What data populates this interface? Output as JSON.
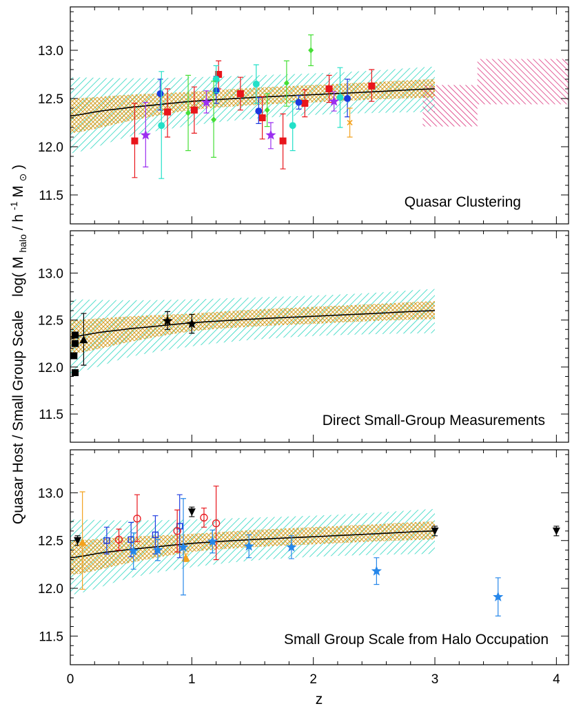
{
  "figure": {
    "ylabel_main": "Quasar Host / Small Group Scale",
    "ylabel_log": "log( M",
    "ylabel_halo_sub": "halo",
    "ylabel_mid": " / h",
    "ylabel_sup": "-1",
    "ylabel_msun": " M",
    "ylabel_sun_sub": "⊙",
    "ylabel_close": ")",
    "xlabel": "z"
  },
  "colors": {
    "axis": "#000000",
    "model_line": "#000000",
    "cyan_band": "#2ad6c0",
    "orange_band": "#d9a230",
    "magenta_band": "#d6176b",
    "red": "#e8151b",
    "blue": "#1b39e0",
    "cyan": "#22e0c8",
    "green": "#46df36",
    "purple": "#9b2ff0",
    "orange": "#f3a21f",
    "brown": "#b36a3b",
    "skyblue": "#2687ea",
    "black": "#000000"
  },
  "chart_data": [
    {
      "type": "scatter",
      "panel_label": "Quasar Clustering",
      "xlim": [
        0,
        4.1
      ],
      "ylim": [
        11.2,
        13.45
      ],
      "yticks": [
        "11.5",
        "12.0",
        "12.5",
        "13.0"
      ],
      "xticks": [],
      "model_curve": {
        "x": [
          0,
          0.25,
          0.5,
          1.0,
          1.5,
          2.0,
          2.5,
          3.0
        ],
        "y": [
          12.32,
          12.37,
          12.41,
          12.47,
          12.51,
          12.54,
          12.57,
          12.6
        ]
      },
      "cyan_band": {
        "x": [
          0,
          0.5,
          1.0,
          1.5,
          2.0,
          2.5,
          3.0
        ],
        "upper": [
          12.72,
          12.71,
          12.72,
          12.74,
          12.76,
          12.79,
          12.83
        ],
        "lower": [
          11.93,
          12.11,
          12.22,
          12.29,
          12.33,
          12.35,
          12.36
        ]
      },
      "orange_band": {
        "x": [
          0,
          0.5,
          1.0,
          1.5,
          2.0,
          2.5,
          3.0
        ],
        "upper": [
          12.5,
          12.54,
          12.57,
          12.61,
          12.64,
          12.67,
          12.7
        ],
        "lower": [
          12.14,
          12.27,
          12.38,
          12.43,
          12.46,
          12.49,
          12.51
        ]
      },
      "magenta_boxes": [
        {
          "x0": 2.9,
          "x1": 3.35,
          "y0": 12.21,
          "y1": 12.64
        },
        {
          "x0": 3.35,
          "x1": 4.1,
          "y0": 12.44,
          "y1": 12.91
        }
      ],
      "series": [
        {
          "color": "red",
          "marker": "square",
          "points": [
            {
              "x": 0.53,
              "y": 12.06,
              "lo": 11.68,
              "hi": 12.45
            },
            {
              "x": 0.8,
              "y": 12.36,
              "lo": 12.1,
              "hi": 12.6
            },
            {
              "x": 1.02,
              "y": 12.38,
              "lo": 12.14,
              "hi": 12.62
            },
            {
              "x": 1.22,
              "y": 12.75,
              "lo": 12.6,
              "hi": 12.89
            },
            {
              "x": 1.4,
              "y": 12.55,
              "lo": 12.38,
              "hi": 12.72
            },
            {
              "x": 1.58,
              "y": 12.3,
              "lo": 12.08,
              "hi": 12.52
            },
            {
              "x": 1.75,
              "y": 12.06,
              "lo": 11.77,
              "hi": 12.34
            },
            {
              "x": 1.93,
              "y": 12.45,
              "lo": 12.31,
              "hi": 12.59
            },
            {
              "x": 2.13,
              "y": 12.6,
              "lo": 12.46,
              "hi": 12.74
            },
            {
              "x": 2.48,
              "y": 12.63,
              "lo": 12.47,
              "hi": 12.8
            }
          ]
        },
        {
          "color": "blue",
          "marker": "circle",
          "points": [
            {
              "x": 0.74,
              "y": 12.55,
              "lo": 12.38,
              "hi": 12.7
            },
            {
              "x": 1.2,
              "y": 12.58,
              "lo": 12.45,
              "hi": 12.73
            },
            {
              "x": 1.55,
              "y": 12.37,
              "lo": 12.24,
              "hi": 12.51
            },
            {
              "x": 1.88,
              "y": 12.46,
              "lo": 12.39,
              "hi": 12.53
            },
            {
              "x": 2.28,
              "y": 12.5,
              "lo": 12.31,
              "hi": 12.7
            }
          ]
        },
        {
          "color": "cyan",
          "marker": "circle",
          "points": [
            {
              "x": 0.75,
              "y": 12.22,
              "lo": 11.67,
              "hi": 12.78
            },
            {
              "x": 1.2,
              "y": 12.7,
              "lo": 12.56,
              "hi": 12.84
            },
            {
              "x": 1.53,
              "y": 12.65,
              "lo": 12.45,
              "hi": 12.85
            },
            {
              "x": 1.83,
              "y": 12.22,
              "lo": 11.96,
              "hi": 12.47
            },
            {
              "x": 2.22,
              "y": 12.51,
              "lo": 12.2,
              "hi": 12.82
            }
          ]
        },
        {
          "color": "green",
          "marker": "diamond",
          "points": [
            {
              "x": 0.97,
              "y": 12.35,
              "lo": 11.96,
              "hi": 12.74
            },
            {
              "x": 1.18,
              "y": 12.28,
              "lo": 11.89,
              "hi": 12.68
            },
            {
              "x": 1.62,
              "y": 12.38,
              "lo": 12.21,
              "hi": 12.55
            },
            {
              "x": 1.78,
              "y": 12.66,
              "lo": 12.42,
              "hi": 12.89
            },
            {
              "x": 1.98,
              "y": 13.0,
              "lo": 12.84,
              "hi": 13.16
            }
          ]
        },
        {
          "color": "purple",
          "marker": "star",
          "points": [
            {
              "x": 0.62,
              "y": 12.12,
              "lo": 11.79,
              "hi": 12.46
            },
            {
              "x": 1.12,
              "y": 12.46,
              "lo": 12.35,
              "hi": 12.58
            },
            {
              "x": 1.65,
              "y": 12.12,
              "lo": 11.98,
              "hi": 12.25
            },
            {
              "x": 2.17,
              "y": 12.47,
              "lo": 12.37,
              "hi": 12.57
            }
          ]
        },
        {
          "color": "orange",
          "marker": "cross",
          "points": [
            {
              "x": 2.3,
              "y": 12.25,
              "lo": 12.1,
              "hi": 12.4
            }
          ]
        }
      ]
    },
    {
      "type": "scatter",
      "panel_label": "Direct Small-Group Measurements",
      "xlim": [
        0,
        4.1
      ],
      "ylim": [
        11.2,
        13.45
      ],
      "yticks": [
        "11.5",
        "12.0",
        "12.5",
        "13.0"
      ],
      "xticks": [],
      "model_curve": {
        "x": [
          0,
          0.25,
          0.5,
          1.0,
          1.5,
          2.0,
          2.5,
          3.0
        ],
        "y": [
          12.32,
          12.37,
          12.41,
          12.47,
          12.51,
          12.54,
          12.57,
          12.6
        ]
      },
      "cyan_band": {
        "x": [
          0,
          0.5,
          1.0,
          1.5,
          2.0,
          2.5,
          3.0
        ],
        "upper": [
          12.72,
          12.71,
          12.72,
          12.74,
          12.76,
          12.79,
          12.83
        ],
        "lower": [
          11.93,
          12.11,
          12.22,
          12.29,
          12.33,
          12.35,
          12.36
        ]
      },
      "orange_band": {
        "x": [
          0,
          0.5,
          1.0,
          1.5,
          2.0,
          2.5,
          3.0
        ],
        "upper": [
          12.5,
          12.54,
          12.57,
          12.61,
          12.64,
          12.67,
          12.7
        ],
        "lower": [
          12.14,
          12.27,
          12.38,
          12.43,
          12.46,
          12.49,
          12.51
        ]
      },
      "magenta_boxes": [],
      "series": [
        {
          "color": "black",
          "marker": "square",
          "points": [
            {
              "x": 0.04,
              "y": 12.34
            },
            {
              "x": 0.04,
              "y": 12.25
            },
            {
              "x": 0.03,
              "y": 12.12
            },
            {
              "x": 0.04,
              "y": 11.94
            }
          ]
        },
        {
          "color": "black",
          "marker": "triangle",
          "points": [
            {
              "x": 0.11,
              "y": 12.29,
              "lo": 12.02,
              "hi": 12.57
            }
          ]
        },
        {
          "color": "black",
          "marker": "star",
          "points": [
            {
              "x": 0.8,
              "y": 12.49,
              "lo": 12.4,
              "hi": 12.59
            },
            {
              "x": 1.0,
              "y": 12.46,
              "lo": 12.36,
              "hi": 12.56
            }
          ]
        }
      ]
    },
    {
      "type": "scatter",
      "panel_label": "Small Group Scale from Halo Occupation",
      "xlim": [
        0,
        4.1
      ],
      "ylim": [
        11.2,
        13.45
      ],
      "yticks": [
        "11.5",
        "12.0",
        "12.5",
        "13.0"
      ],
      "xticks": [
        "0",
        "1",
        "2",
        "3",
        "4"
      ],
      "model_curve": {
        "x": [
          0,
          0.25,
          0.5,
          1.0,
          1.5,
          2.0,
          2.5,
          3.0
        ],
        "y": [
          12.32,
          12.37,
          12.41,
          12.47,
          12.51,
          12.54,
          12.57,
          12.6
        ]
      },
      "cyan_band": {
        "x": [
          0,
          0.5,
          1.0,
          1.5,
          2.0,
          2.5,
          3.0
        ],
        "upper": [
          12.72,
          12.71,
          12.72,
          12.74,
          12.76,
          12.79,
          12.83
        ],
        "lower": [
          11.93,
          12.11,
          12.22,
          12.29,
          12.33,
          12.35,
          12.36
        ]
      },
      "orange_band": {
        "x": [
          0,
          0.5,
          1.0,
          1.5,
          2.0,
          2.5,
          3.0
        ],
        "upper": [
          12.5,
          12.54,
          12.57,
          12.61,
          12.64,
          12.67,
          12.7
        ],
        "lower": [
          12.14,
          12.27,
          12.38,
          12.43,
          12.46,
          12.49,
          12.51
        ]
      },
      "magenta_boxes": [],
      "series": [
        {
          "color": "black",
          "marker": "tri-down",
          "points": [
            {
              "x": 0.06,
              "y": 12.5,
              "lo": 12.45,
              "hi": 12.55
            },
            {
              "x": 1.0,
              "y": 12.8,
              "lo": 12.75,
              "hi": 12.85
            },
            {
              "x": 3.0,
              "y": 12.6,
              "lo": 12.55,
              "hi": 12.65
            },
            {
              "x": 4.0,
              "y": 12.6,
              "lo": 12.55,
              "hi": 12.65
            }
          ]
        },
        {
          "color": "orange",
          "marker": "triangle",
          "points": [
            {
              "x": 0.1,
              "y": 12.48,
              "lo": 11.99,
              "hi": 13.01
            },
            {
              "x": 0.95,
              "y": 12.32,
              "lo": 12.28,
              "hi": 12.36
            }
          ]
        },
        {
          "color": "blue",
          "marker": "open-square",
          "points": [
            {
              "x": 0.3,
              "y": 12.5,
              "lo": 12.36,
              "hi": 12.64
            },
            {
              "x": 0.5,
              "y": 12.51,
              "lo": 12.33,
              "hi": 12.69
            },
            {
              "x": 0.7,
              "y": 12.56,
              "lo": 12.36,
              "hi": 12.76
            },
            {
              "x": 0.9,
              "y": 12.65,
              "lo": 12.32,
              "hi": 12.98
            }
          ]
        },
        {
          "color": "red",
          "marker": "open-circle",
          "points": [
            {
              "x": 0.4,
              "y": 12.51,
              "lo": 12.4,
              "hi": 12.62
            },
            {
              "x": 0.55,
              "y": 12.73,
              "lo": 12.49,
              "hi": 12.98
            },
            {
              "x": 0.88,
              "y": 12.6,
              "lo": 12.38,
              "hi": 12.82
            },
            {
              "x": 1.1,
              "y": 12.74,
              "lo": 12.64,
              "hi": 12.84
            },
            {
              "x": 1.2,
              "y": 12.68,
              "lo": 12.3,
              "hi": 13.07
            }
          ]
        },
        {
          "color": "skyblue",
          "marker": "star",
          "points": [
            {
              "x": 0.52,
              "y": 12.39,
              "lo": 12.2,
              "hi": 12.58
            },
            {
              "x": 0.72,
              "y": 12.4,
              "lo": 12.29,
              "hi": 12.51
            },
            {
              "x": 0.93,
              "y": 12.43,
              "lo": 11.93,
              "hi": 12.94
            },
            {
              "x": 1.17,
              "y": 12.49,
              "lo": 12.37,
              "hi": 12.61
            },
            {
              "x": 1.47,
              "y": 12.44,
              "lo": 12.32,
              "hi": 12.56
            },
            {
              "x": 1.82,
              "y": 12.43,
              "lo": 12.31,
              "hi": 12.55
            },
            {
              "x": 2.52,
              "y": 12.18,
              "lo": 12.04,
              "hi": 12.32
            },
            {
              "x": 3.52,
              "y": 11.91,
              "lo": 11.71,
              "hi": 12.11
            }
          ]
        }
      ]
    }
  ]
}
